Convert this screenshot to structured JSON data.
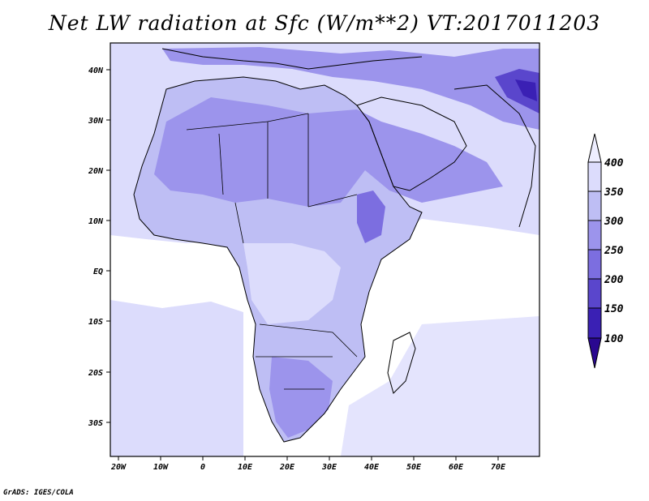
{
  "title": "Net LW radiation at Sfc (W/m**2) VT:2017011203",
  "footer": "GrADS: IGES/COLA",
  "lat_labels": [
    "40N",
    "30N",
    "20N",
    "10N",
    "EQ",
    "10S",
    "20S",
    "30S"
  ],
  "lon_labels": [
    "20W",
    "10W",
    "0",
    "10E",
    "20E",
    "30E",
    "40E",
    "50E",
    "60E",
    "70E"
  ],
  "colorbar": {
    "levels": [
      "400",
      "350",
      "300",
      "250",
      "200",
      "150",
      "100"
    ],
    "colors": {
      "above_400": "#eeeeff",
      "350_400": "#dcdcfc",
      "300_350": "#bebef4",
      "250_300": "#9c94ec",
      "200_250": "#7c6ee0",
      "150_200": "#5a46cc",
      "100_150": "#3a20b4",
      "below_100": "#2a0890"
    }
  },
  "map": {
    "projection": "lat-lon",
    "lon_range": [
      -21,
      80
    ],
    "lat_range": [
      -37,
      45
    ]
  }
}
